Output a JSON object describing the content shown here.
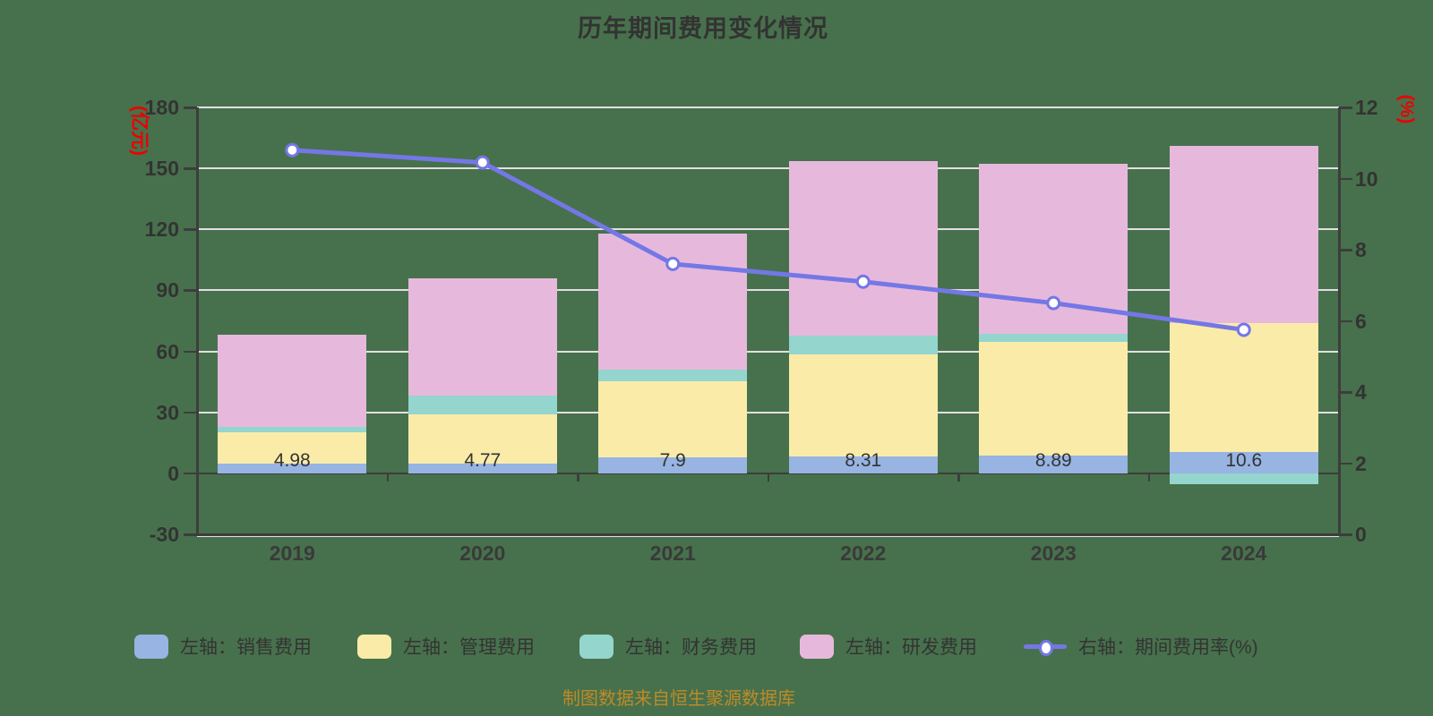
{
  "chart_data": {
    "type": "bar",
    "title": "历年期间费用变化情况",
    "caption": "制图数据来自恒生聚源数据库",
    "categories": [
      "2019",
      "2020",
      "2021",
      "2022",
      "2023",
      "2024"
    ],
    "stacked_series": [
      {
        "name": "左轴：销售费用",
        "color": "#97B4E2",
        "values": [
          4.98,
          4.77,
          7.9,
          8.31,
          8.89,
          10.6
        ]
      },
      {
        "name": "左轴：管理费用",
        "color": "#FAECA8",
        "values": [
          15.1,
          24.4,
          37.6,
          50.2,
          55.8,
          63.4
        ]
      },
      {
        "name": "左轴：财务费用",
        "color": "#94D5CE",
        "values": [
          2.9,
          8.9,
          5.4,
          9.4,
          4.1,
          -5.5
        ]
      },
      {
        "name": "左轴：研发费用",
        "color": "#E6B9DC",
        "values": [
          45.0,
          58.0,
          67.1,
          85.6,
          83.3,
          87.1
        ]
      }
    ],
    "line_series": {
      "name": "右轴：期间费用率(%)",
      "color": "#7477E6",
      "marker_fill": "#FFFFFF",
      "values": [
        10.8,
        10.45,
        7.6,
        7.1,
        6.5,
        5.75
      ]
    },
    "bar_labels": [
      "4.98",
      "4.77",
      "7.9",
      "8.31",
      "8.89",
      "10.6"
    ],
    "left_axis": {
      "label": "(亿元)",
      "min": -30,
      "max": 180,
      "step": 30,
      "ticks": [
        180,
        150,
        120,
        90,
        60,
        30,
        0,
        -30
      ]
    },
    "right_axis": {
      "label": "(%)",
      "min": 0,
      "max": 12,
      "step": 2,
      "ticks": [
        12,
        10,
        8,
        6,
        4,
        2,
        0
      ]
    },
    "grid": "on",
    "legend_position": "bottom",
    "colors": {
      "background": "#47714C",
      "grid_line": "#E4DEE2",
      "axis_line": "#3D3D3D",
      "tick_text": "#333333",
      "axis_unit_text": "#EC0000",
      "caption_text": "#BE8A26"
    }
  }
}
